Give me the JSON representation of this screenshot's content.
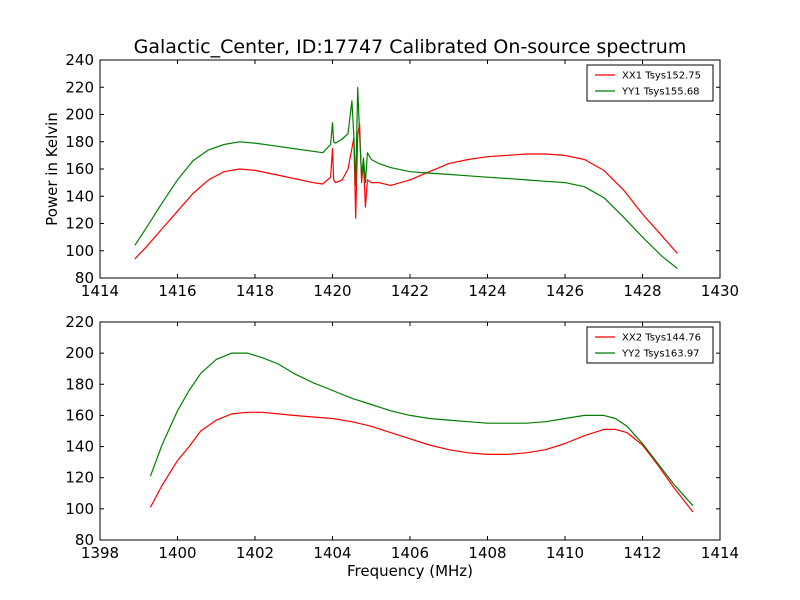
{
  "title": "Galactic_Center, ID:17747 Calibrated On-source spectrum",
  "chart_data": [
    {
      "type": "line",
      "title": "Galactic_Center, ID:17747 Calibrated On-source spectrum",
      "xlabel": "",
      "ylabel": "Power in Kelvin",
      "xlim": [
        1414,
        1430
      ],
      "ylim": [
        80,
        240
      ],
      "xticks": [
        1414,
        1416,
        1418,
        1420,
        1422,
        1424,
        1426,
        1428,
        1430
      ],
      "yticks": [
        80,
        100,
        120,
        140,
        160,
        180,
        200,
        220,
        240
      ],
      "grid": false,
      "legend_position": "top-right",
      "series": [
        {
          "name": "XX1 Tsys152.75",
          "color": "#ff0000",
          "x": [
            1414.9,
            1415.2,
            1415.6,
            1416.0,
            1416.4,
            1416.8,
            1417.2,
            1417.6,
            1418.0,
            1418.5,
            1419.0,
            1419.5,
            1419.75,
            1419.95,
            1420.0,
            1420.03,
            1420.08,
            1420.25,
            1420.4,
            1420.5,
            1420.55,
            1420.6,
            1420.65,
            1420.7,
            1420.75,
            1420.8,
            1420.85,
            1420.9,
            1421.0,
            1421.2,
            1421.5,
            1422.0,
            1422.5,
            1423.0,
            1423.5,
            1424.0,
            1424.5,
            1425.0,
            1425.5,
            1426.0,
            1426.5,
            1427.0,
            1427.5,
            1428.0,
            1428.5,
            1428.9
          ],
          "y": [
            94,
            103,
            116,
            129,
            142,
            152,
            158,
            160,
            159,
            156,
            153,
            150,
            149,
            154,
            175,
            152,
            150,
            152,
            160,
            175,
            183,
            124,
            185,
            193,
            150,
            165,
            132,
            152,
            150,
            150,
            148,
            152,
            158,
            164,
            167,
            169,
            170,
            171,
            171,
            170,
            167,
            159,
            145,
            127,
            111,
            98
          ]
        },
        {
          "name": "YY1 Tsys155.68",
          "color": "#007f00",
          "x": [
            1414.9,
            1415.2,
            1415.6,
            1416.0,
            1416.4,
            1416.8,
            1417.2,
            1417.6,
            1418.0,
            1418.5,
            1419.0,
            1419.5,
            1419.75,
            1419.95,
            1420.0,
            1420.03,
            1420.08,
            1420.25,
            1420.4,
            1420.5,
            1420.55,
            1420.6,
            1420.65,
            1420.7,
            1420.75,
            1420.8,
            1420.85,
            1420.9,
            1421.0,
            1421.2,
            1421.5,
            1422.0,
            1422.5,
            1423.0,
            1423.5,
            1424.0,
            1424.5,
            1425.0,
            1425.5,
            1426.0,
            1426.5,
            1427.0,
            1427.5,
            1428.0,
            1428.5,
            1428.9
          ],
          "y": [
            104,
            117,
            135,
            152,
            166,
            174,
            178,
            180,
            179,
            177,
            175,
            173,
            172,
            178,
            194,
            180,
            179,
            182,
            186,
            210,
            185,
            148,
            220,
            185,
            155,
            168,
            150,
            172,
            167,
            164,
            161,
            158,
            157,
            156,
            155,
            154,
            153,
            152,
            151,
            150,
            147,
            139,
            125,
            110,
            96,
            87
          ]
        }
      ]
    },
    {
      "type": "line",
      "title": "",
      "xlabel": "Frequency (MHz)",
      "ylabel": "",
      "xlim": [
        1398,
        1414
      ],
      "ylim": [
        80,
        220
      ],
      "xticks": [
        1398,
        1400,
        1402,
        1404,
        1406,
        1408,
        1410,
        1412,
        1414
      ],
      "yticks": [
        80,
        100,
        120,
        140,
        160,
        180,
        200,
        220
      ],
      "grid": false,
      "legend_position": "top-right",
      "series": [
        {
          "name": "XX2 Tsys144.76",
          "color": "#ff0000",
          "x": [
            1399.3,
            1399.6,
            1400.0,
            1400.3,
            1400.6,
            1401.0,
            1401.4,
            1401.8,
            1402.2,
            1402.6,
            1403.0,
            1403.5,
            1404.0,
            1404.5,
            1405.0,
            1405.5,
            1406.0,
            1406.5,
            1407.0,
            1407.5,
            1408.0,
            1408.5,
            1409.0,
            1409.5,
            1410.0,
            1410.5,
            1411.0,
            1411.3,
            1411.6,
            1412.0,
            1412.4,
            1412.8,
            1413.3
          ],
          "y": [
            101,
            115,
            131,
            140,
            150,
            157,
            161,
            162,
            162,
            161,
            160,
            159,
            158,
            156,
            153,
            149,
            145,
            141,
            138,
            136,
            135,
            135,
            136,
            138,
            142,
            147,
            151,
            151,
            149,
            141,
            128,
            114,
            98
          ]
        },
        {
          "name": "YY2 Tsys163.97",
          "color": "#007f00",
          "x": [
            1399.3,
            1399.6,
            1400.0,
            1400.3,
            1400.6,
            1401.0,
            1401.4,
            1401.8,
            1402.2,
            1402.6,
            1403.0,
            1403.5,
            1404.0,
            1404.5,
            1405.0,
            1405.5,
            1406.0,
            1406.5,
            1407.0,
            1407.5,
            1408.0,
            1408.5,
            1409.0,
            1409.5,
            1410.0,
            1410.5,
            1411.0,
            1411.3,
            1411.6,
            1412.0,
            1412.4,
            1412.8,
            1413.3
          ],
          "y": [
            121,
            141,
            163,
            176,
            187,
            196,
            200,
            200,
            197,
            193,
            187,
            181,
            176,
            171,
            167,
            163,
            160,
            158,
            157,
            156,
            155,
            155,
            155,
            156,
            158,
            160,
            160,
            158,
            153,
            142,
            129,
            116,
            102
          ]
        }
      ]
    }
  ]
}
